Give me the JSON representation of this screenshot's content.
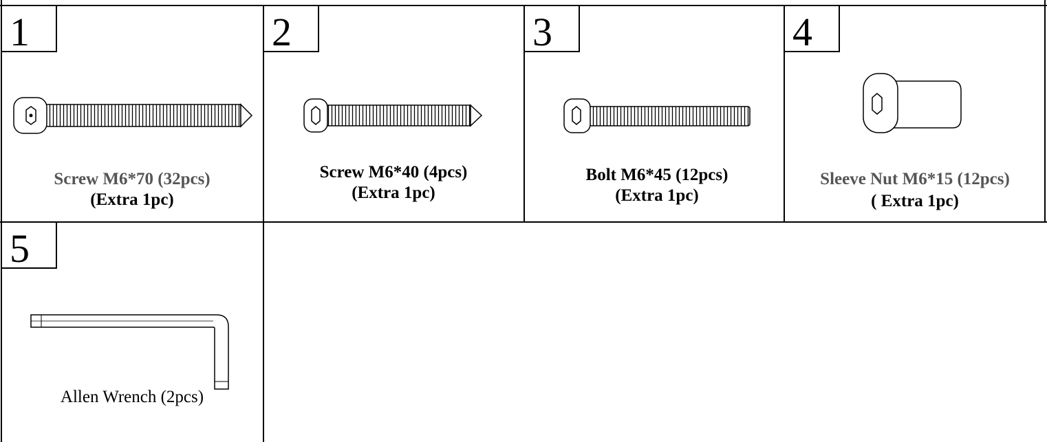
{
  "items": [
    {
      "number": "1",
      "lines": [
        "Screw M6*70 (32pcs)",
        "(Extra 1pc)"
      ]
    },
    {
      "number": "2",
      "lines": [
        "Screw M6*40 (4pcs)",
        "(Extra 1pc)"
      ]
    },
    {
      "number": "3",
      "lines": [
        "Bolt M6*45 (12pcs)",
        "(Extra 1pc)"
      ]
    },
    {
      "number": "4",
      "lines": [
        "Sleeve Nut M6*15 (12pcs)",
        "( Extra 1pc)"
      ]
    },
    {
      "number": "5",
      "lines": [
        "Allen Wrench (2pcs)"
      ]
    }
  ]
}
